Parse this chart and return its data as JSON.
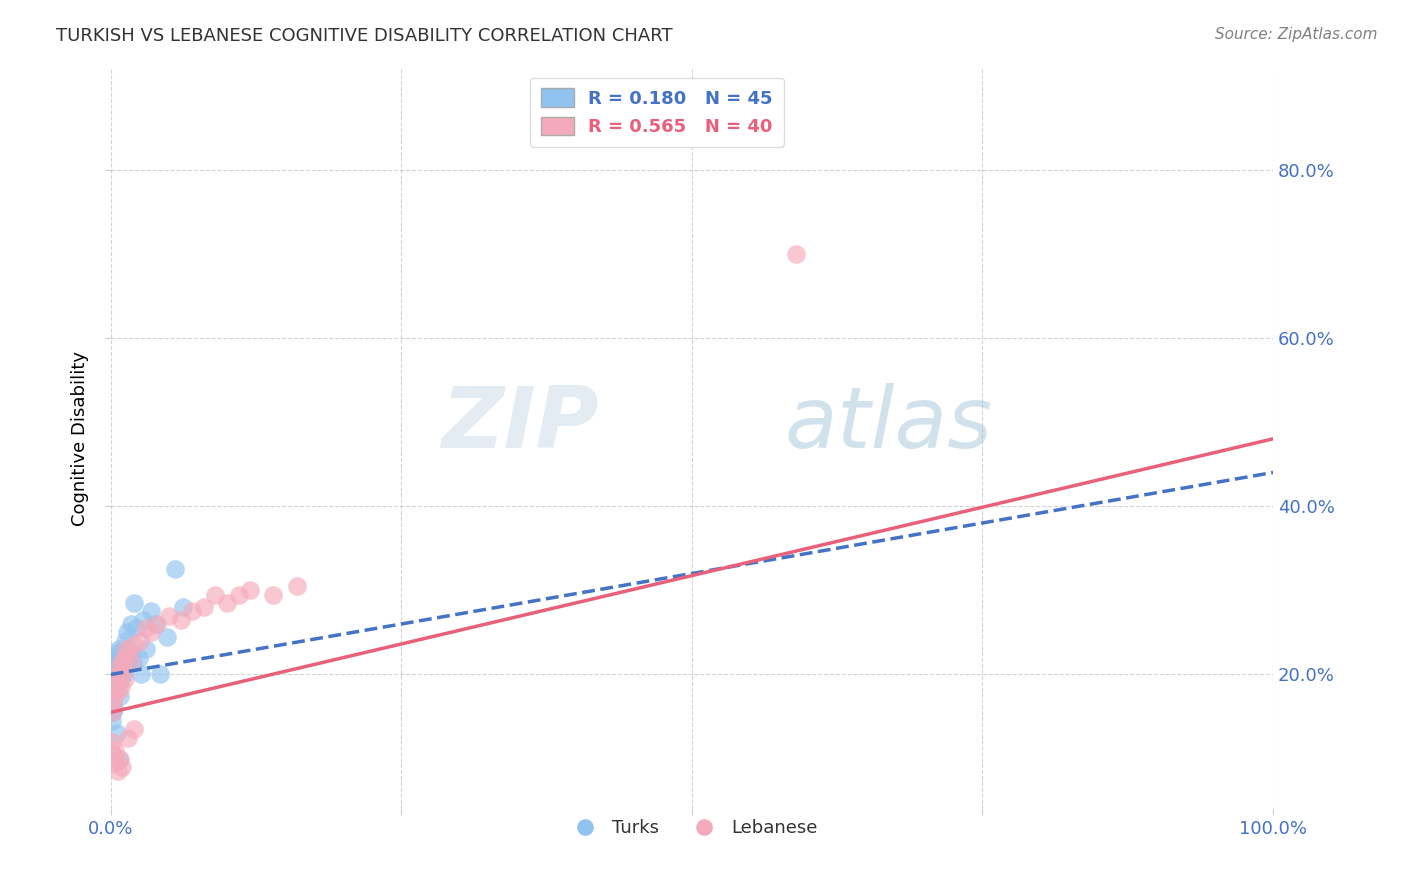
{
  "title": "TURKISH VS LEBANESE COGNITIVE DISABILITY CORRELATION CHART",
  "source": "Source: ZipAtlas.com",
  "ylabel": "Cognitive Disability",
  "xlim": [
    0.0,
    1.0
  ],
  "ylim": [
    0.04,
    0.92
  ],
  "y_ticks_right": [
    0.2,
    0.4,
    0.6,
    0.8
  ],
  "y_tick_labels_right": [
    "20.0%",
    "40.0%",
    "60.0%",
    "80.0%"
  ],
  "legend_line1": "R = 0.180   N = 45",
  "legend_line2": "R = 0.565   N = 40",
  "watermark_zip": "ZIP",
  "watermark_atlas": "atlas",
  "blue_color": "#91C3F0",
  "pink_color": "#F5AABB",
  "trend_blue_color": "#4472C4",
  "trend_pink_color": "#E8607A",
  "grid_color": "#C8C8C8",
  "title_color": "#333333",
  "axis_label_color": "#4472C4",
  "turks_x": [
    0.001,
    0.002,
    0.003,
    0.003,
    0.004,
    0.004,
    0.005,
    0.005,
    0.006,
    0.006,
    0.007,
    0.007,
    0.008,
    0.008,
    0.009,
    0.009,
    0.01,
    0.01,
    0.011,
    0.011,
    0.012,
    0.013,
    0.014,
    0.015,
    0.016,
    0.017,
    0.018,
    0.019,
    0.02,
    0.022,
    0.024,
    0.026,
    0.028,
    0.03,
    0.035,
    0.038,
    0.042,
    0.048,
    0.055,
    0.062,
    0.001,
    0.002,
    0.003,
    0.005,
    0.007
  ],
  "turks_y": [
    0.205,
    0.195,
    0.215,
    0.2,
    0.225,
    0.185,
    0.21,
    0.22,
    0.19,
    0.215,
    0.205,
    0.23,
    0.175,
    0.215,
    0.195,
    0.225,
    0.205,
    0.215,
    0.225,
    0.2,
    0.24,
    0.22,
    0.25,
    0.215,
    0.23,
    0.26,
    0.225,
    0.215,
    0.285,
    0.255,
    0.22,
    0.2,
    0.265,
    0.23,
    0.275,
    0.26,
    0.2,
    0.245,
    0.325,
    0.28,
    0.145,
    0.155,
    0.16,
    0.13,
    0.1
  ],
  "lebanese_x": [
    0.001,
    0.002,
    0.003,
    0.004,
    0.005,
    0.006,
    0.007,
    0.008,
    0.009,
    0.01,
    0.011,
    0.012,
    0.013,
    0.015,
    0.017,
    0.02,
    0.025,
    0.03,
    0.035,
    0.04,
    0.05,
    0.06,
    0.07,
    0.08,
    0.09,
    0.1,
    0.11,
    0.12,
    0.14,
    0.16,
    0.001,
    0.002,
    0.003,
    0.004,
    0.006,
    0.008,
    0.01,
    0.015,
    0.59,
    0.02
  ],
  "lebanese_y": [
    0.155,
    0.165,
    0.175,
    0.185,
    0.195,
    0.18,
    0.2,
    0.21,
    0.185,
    0.215,
    0.22,
    0.195,
    0.23,
    0.225,
    0.215,
    0.235,
    0.24,
    0.255,
    0.25,
    0.26,
    0.27,
    0.265,
    0.275,
    0.28,
    0.295,
    0.285,
    0.295,
    0.3,
    0.295,
    0.305,
    0.12,
    0.105,
    0.095,
    0.11,
    0.085,
    0.1,
    0.09,
    0.125,
    0.7,
    0.135
  ],
  "trend_blue_x0": 0.0,
  "trend_blue_y0": 0.2,
  "trend_blue_x1": 1.0,
  "trend_blue_y1": 0.44,
  "trend_pink_x0": 0.0,
  "trend_pink_y0": 0.155,
  "trend_pink_x1": 1.0,
  "trend_pink_y1": 0.48
}
